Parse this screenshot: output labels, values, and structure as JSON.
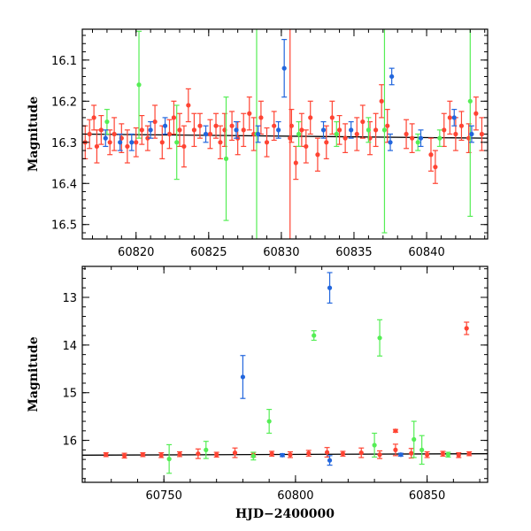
{
  "chart_data": [
    {
      "type": "scatter",
      "title": "",
      "xlabel": "",
      "ylabel": "Magnitude",
      "xlim": [
        60816.3,
        60844.2
      ],
      "ylim": [
        16.535,
        16.025
      ],
      "y_inverted": true,
      "xticks": [
        60820,
        60825,
        60830,
        60835,
        60840
      ],
      "xtick_labels": [
        "60820",
        "60825",
        "60830",
        "60835",
        "60840"
      ],
      "yticks": [
        16.1,
        16.2,
        16.3,
        16.4,
        16.5
      ],
      "ytick_labels": [
        "16.1",
        "16.2",
        "16.3",
        "16.4",
        "16.5"
      ],
      "grid": false,
      "legend": "none",
      "series": [
        {
          "color": "#ff4433",
          "points": [
            {
              "x": 60816.5,
              "y": 16.3,
              "e": 0.04
            },
            {
              "x": 60816.8,
              "y": 16.28,
              "e": 0.035
            },
            {
              "x": 60817.1,
              "y": 16.24,
              "e": 0.03
            },
            {
              "x": 60817.3,
              "y": 16.31,
              "e": 0.04
            },
            {
              "x": 60817.6,
              "y": 16.27,
              "e": 0.035
            },
            {
              "x": 60818.2,
              "y": 16.3,
              "e": 0.03
            },
            {
              "x": 60818.5,
              "y": 16.28,
              "e": 0.04
            },
            {
              "x": 60819.0,
              "y": 16.29,
              "e": 0.035
            },
            {
              "x": 60819.4,
              "y": 16.31,
              "e": 0.04
            },
            {
              "x": 60820.0,
              "y": 16.3,
              "e": 0.035
            },
            {
              "x": 60820.4,
              "y": 16.27,
              "e": 0.035
            },
            {
              "x": 60820.8,
              "y": 16.29,
              "e": 0.03
            },
            {
              "x": 60821.3,
              "y": 16.25,
              "e": 0.04
            },
            {
              "x": 60821.8,
              "y": 16.3,
              "e": 0.04
            },
            {
              "x": 60822.3,
              "y": 16.28,
              "e": 0.035
            },
            {
              "x": 60822.6,
              "y": 16.24,
              "e": 0.04
            },
            {
              "x": 60823.0,
              "y": 16.27,
              "e": 0.04
            },
            {
              "x": 60823.3,
              "y": 16.31,
              "e": 0.05
            },
            {
              "x": 60823.6,
              "y": 16.21,
              "e": 0.04
            },
            {
              "x": 60824.0,
              "y": 16.27,
              "e": 0.04
            },
            {
              "x": 60824.4,
              "y": 16.26,
              "e": 0.03
            },
            {
              "x": 60825.1,
              "y": 16.28,
              "e": 0.035
            },
            {
              "x": 60825.5,
              "y": 16.26,
              "e": 0.03
            },
            {
              "x": 60825.8,
              "y": 16.3,
              "e": 0.04
            },
            {
              "x": 60826.1,
              "y": 16.27,
              "e": 0.04
            },
            {
              "x": 60826.6,
              "y": 16.26,
              "e": 0.035
            },
            {
              "x": 60827.0,
              "y": 16.29,
              "e": 0.04
            },
            {
              "x": 60827.4,
              "y": 16.27,
              "e": 0.04
            },
            {
              "x": 60827.8,
              "y": 16.23,
              "e": 0.04
            },
            {
              "x": 60828.1,
              "y": 16.28,
              "e": 0.04
            },
            {
              "x": 60828.6,
              "y": 16.24,
              "e": 0.04
            },
            {
              "x": 60829.0,
              "y": 16.3,
              "e": 0.035
            },
            {
              "x": 60829.5,
              "y": 16.26,
              "e": 0.035
            },
            {
              "x": 60830.6,
              "y": 16.29,
              "e": 0.3
            },
            {
              "x": 60830.7,
              "y": 16.26,
              "e": 0.04
            },
            {
              "x": 60831.0,
              "y": 16.35,
              "e": 0.04
            },
            {
              "x": 60831.4,
              "y": 16.27,
              "e": 0.04
            },
            {
              "x": 60831.7,
              "y": 16.31,
              "e": 0.04
            },
            {
              "x": 60832.0,
              "y": 16.24,
              "e": 0.04
            },
            {
              "x": 60832.5,
              "y": 16.33,
              "e": 0.04
            },
            {
              "x": 60833.1,
              "y": 16.3,
              "e": 0.04
            },
            {
              "x": 60833.5,
              "y": 16.24,
              "e": 0.04
            },
            {
              "x": 60834.0,
              "y": 16.27,
              "e": 0.035
            },
            {
              "x": 60834.4,
              "y": 16.29,
              "e": 0.035
            },
            {
              "x": 60835.2,
              "y": 16.28,
              "e": 0.04
            },
            {
              "x": 60835.6,
              "y": 16.25,
              "e": 0.04
            },
            {
              "x": 60836.1,
              "y": 16.29,
              "e": 0.04
            },
            {
              "x": 60836.5,
              "y": 16.27,
              "e": 0.04
            },
            {
              "x": 60836.9,
              "y": 16.2,
              "e": 0.04
            },
            {
              "x": 60837.3,
              "y": 16.26,
              "e": 0.04
            },
            {
              "x": 60838.6,
              "y": 16.28,
              "e": 0.035
            },
            {
              "x": 60839.0,
              "y": 16.29,
              "e": 0.035
            },
            {
              "x": 60840.3,
              "y": 16.33,
              "e": 0.04
            },
            {
              "x": 60840.6,
              "y": 16.36,
              "e": 0.04
            },
            {
              "x": 60841.2,
              "y": 16.27,
              "e": 0.04
            },
            {
              "x": 60841.6,
              "y": 16.24,
              "e": 0.04
            },
            {
              "x": 60842.0,
              "y": 16.28,
              "e": 0.04
            },
            {
              "x": 60842.4,
              "y": 16.26,
              "e": 0.035
            },
            {
              "x": 60842.9,
              "y": 16.29,
              "e": 0.035
            },
            {
              "x": 60843.4,
              "y": 16.23,
              "e": 0.04
            },
            {
              "x": 60843.8,
              "y": 16.28,
              "e": 0.04
            }
          ]
        },
        {
          "color": "#2266dd",
          "points": [
            {
              "x": 60817.9,
              "y": 16.29,
              "e": 0.02
            },
            {
              "x": 60818.9,
              "y": 16.3,
              "e": 0.02
            },
            {
              "x": 60819.7,
              "y": 16.3,
              "e": 0.02
            },
            {
              "x": 60821.0,
              "y": 16.27,
              "e": 0.02
            },
            {
              "x": 60822.0,
              "y": 16.26,
              "e": 0.02
            },
            {
              "x": 60824.8,
              "y": 16.28,
              "e": 0.02
            },
            {
              "x": 60826.9,
              "y": 16.27,
              "e": 0.02
            },
            {
              "x": 60828.4,
              "y": 16.28,
              "e": 0.02
            },
            {
              "x": 60829.8,
              "y": 16.27,
              "e": 0.02
            },
            {
              "x": 60830.2,
              "y": 16.12,
              "e": 0.07
            },
            {
              "x": 60832.9,
              "y": 16.27,
              "e": 0.02
            },
            {
              "x": 60834.8,
              "y": 16.27,
              "e": 0.02
            },
            {
              "x": 60837.5,
              "y": 16.3,
              "e": 0.02
            },
            {
              "x": 60837.6,
              "y": 16.14,
              "e": 0.02
            },
            {
              "x": 60839.6,
              "y": 16.29,
              "e": 0.02
            },
            {
              "x": 60841.9,
              "y": 16.24,
              "e": 0.02
            },
            {
              "x": 60843.1,
              "y": 16.28,
              "e": 0.02
            }
          ]
        },
        {
          "color": "#55ee55",
          "points": [
            {
              "x": 60818.0,
              "y": 16.25,
              "e": 0.03
            },
            {
              "x": 60820.2,
              "y": 16.16,
              "e": 0.13
            },
            {
              "x": 60822.8,
              "y": 16.3,
              "e": 0.09
            },
            {
              "x": 60826.2,
              "y": 16.34,
              "e": 0.15
            },
            {
              "x": 60828.3,
              "y": 16.28,
              "e": 0.3
            },
            {
              "x": 60831.2,
              "y": 16.28,
              "e": 0.03
            },
            {
              "x": 60833.8,
              "y": 16.28,
              "e": 0.03
            },
            {
              "x": 60836.0,
              "y": 16.27,
              "e": 0.03
            },
            {
              "x": 60837.1,
              "y": 16.27,
              "e": 0.25
            },
            {
              "x": 60839.4,
              "y": 16.3,
              "e": 0.02
            },
            {
              "x": 60840.9,
              "y": 16.29,
              "e": 0.02
            },
            {
              "x": 60843.0,
              "y": 16.2,
              "e": 0.28
            }
          ]
        }
      ],
      "model_line": {
        "color": "#000000",
        "x": [
          60816.3,
          60844.2
        ],
        "y": [
          16.28,
          16.29
        ]
      }
    },
    {
      "type": "scatter",
      "title": "",
      "xlabel": "HJD−2400000",
      "ylabel": "Magnitude",
      "xlim": [
        60719,
        60873
      ],
      "ylim": [
        16.88,
        12.35
      ],
      "y_inverted": true,
      "xticks": [
        60750,
        60800,
        60850
      ],
      "xtick_labels": [
        "60750",
        "60800",
        "60850"
      ],
      "yticks": [
        13,
        14,
        15,
        16
      ],
      "ytick_labels": [
        "13",
        "14",
        "15",
        "16"
      ],
      "grid": false,
      "legend": "none",
      "series": [
        {
          "color": "#ff4433",
          "points": [
            {
              "x": 60728,
              "y": 16.3,
              "e": 0.04
            },
            {
              "x": 60735,
              "y": 16.32,
              "e": 0.05
            },
            {
              "x": 60742,
              "y": 16.3,
              "e": 0.04
            },
            {
              "x": 60749,
              "y": 16.31,
              "e": 0.05
            },
            {
              "x": 60756,
              "y": 16.29,
              "e": 0.05
            },
            {
              "x": 60763,
              "y": 16.28,
              "e": 0.1
            },
            {
              "x": 60770,
              "y": 16.3,
              "e": 0.05
            },
            {
              "x": 60777,
              "y": 16.26,
              "e": 0.1
            },
            {
              "x": 60784,
              "y": 16.3,
              "e": 0.05
            },
            {
              "x": 60791,
              "y": 16.28,
              "e": 0.05
            },
            {
              "x": 60798,
              "y": 16.3,
              "e": 0.06
            },
            {
              "x": 60805,
              "y": 16.27,
              "e": 0.06
            },
            {
              "x": 60812,
              "y": 16.25,
              "e": 0.1
            },
            {
              "x": 60818,
              "y": 16.28,
              "e": 0.05
            },
            {
              "x": 60825,
              "y": 16.26,
              "e": 0.1
            },
            {
              "x": 60832,
              "y": 16.3,
              "e": 0.08
            },
            {
              "x": 60838,
              "y": 16.2,
              "e": 0.12
            },
            {
              "x": 60844,
              "y": 16.27,
              "e": 0.1
            },
            {
              "x": 60850,
              "y": 16.3,
              "e": 0.06
            },
            {
              "x": 60856,
              "y": 16.28,
              "e": 0.05
            },
            {
              "x": 60862,
              "y": 16.31,
              "e": 0.05
            },
            {
              "x": 60866,
              "y": 16.28,
              "e": 0.04
            },
            {
              "x": 60838,
              "y": 15.8,
              "e": 0.03
            },
            {
              "x": 60865,
              "y": 13.65,
              "e": 0.13
            }
          ]
        },
        {
          "color": "#2266dd",
          "points": [
            {
              "x": 60780,
              "y": 14.67,
              "e": 0.45
            },
            {
              "x": 60813,
              "y": 12.8,
              "e": 0.32
            },
            {
              "x": 60813,
              "y": 16.42,
              "e": 0.1
            },
            {
              "x": 60795,
              "y": 16.31,
              "e": 0.03
            },
            {
              "x": 60840,
              "y": 16.3,
              "e": 0.03
            }
          ]
        },
        {
          "color": "#55ee55",
          "points": [
            {
              "x": 60752,
              "y": 16.39,
              "e": 0.3
            },
            {
              "x": 60766,
              "y": 16.2,
              "e": 0.18
            },
            {
              "x": 60784,
              "y": 16.33,
              "e": 0.08
            },
            {
              "x": 60790,
              "y": 15.6,
              "e": 0.25
            },
            {
              "x": 60807,
              "y": 13.8,
              "e": 0.1
            },
            {
              "x": 60832,
              "y": 13.85,
              "e": 0.38
            },
            {
              "x": 60830,
              "y": 16.1,
              "e": 0.25
            },
            {
              "x": 60845,
              "y": 15.98,
              "e": 0.38
            },
            {
              "x": 60848,
              "y": 16.2,
              "e": 0.3
            },
            {
              "x": 60858,
              "y": 16.3,
              "e": 0.05
            }
          ]
        }
      ],
      "model_line": {
        "color": "#000000",
        "x": [
          60719,
          60873
        ],
        "y": [
          16.31,
          16.28
        ]
      }
    }
  ]
}
